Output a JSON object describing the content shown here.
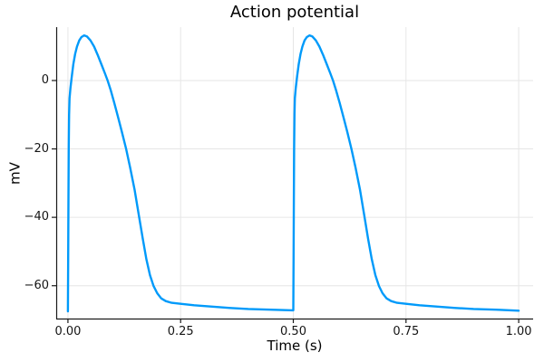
{
  "colors": {
    "line": "#009AFA",
    "grid": "#e6e6e6",
    "spine": "#1a1a1a",
    "tick_text": "#151515",
    "title_text": "#000000",
    "background": "#ffffff"
  },
  "chart_data": {
    "type": "line",
    "title": "Action potential",
    "xlabel": "Time (s)",
    "ylabel": "mV",
    "xlim": [
      -0.026,
      1.032
    ],
    "ylim": [
      -69.6,
      15.6
    ],
    "grid": true,
    "legend": "none",
    "xticks": {
      "values": [
        0,
        0.25,
        0.5,
        0.75,
        1.0
      ],
      "labels": [
        "0.00",
        "0.25",
        "0.50",
        "0.75",
        "1.00"
      ]
    },
    "yticks": {
      "values": [
        0,
        -20,
        -40,
        -60
      ],
      "labels": [
        "0",
        "−20",
        "−40",
        "−60"
      ]
    },
    "series": [
      {
        "name": "membrane potential",
        "color": "#009AFA",
        "points": [
          [
            0.0,
            -67.5
          ],
          [
            0.0006,
            -52
          ],
          [
            0.0012,
            -35
          ],
          [
            0.0018,
            -20
          ],
          [
            0.0025,
            -10
          ],
          [
            0.0035,
            -5.2
          ],
          [
            0.0055,
            -2.2
          ],
          [
            0.0085,
            1.2
          ],
          [
            0.012,
            4.8
          ],
          [
            0.016,
            7.8
          ],
          [
            0.02,
            9.9
          ],
          [
            0.025,
            11.7
          ],
          [
            0.03,
            12.7
          ],
          [
            0.036,
            13.2
          ],
          [
            0.042,
            12.9
          ],
          [
            0.05,
            11.7
          ],
          [
            0.058,
            9.9
          ],
          [
            0.066,
            7.5
          ],
          [
            0.075,
            4.5
          ],
          [
            0.082,
            2.1
          ],
          [
            0.088,
            0.0
          ],
          [
            0.095,
            -2.9
          ],
          [
            0.103,
            -6.6
          ],
          [
            0.112,
            -11.1
          ],
          [
            0.12,
            -15.2
          ],
          [
            0.129,
            -20.0
          ],
          [
            0.138,
            -25.4
          ],
          [
            0.148,
            -32.0
          ],
          [
            0.158,
            -40.0
          ],
          [
            0.166,
            -46.3
          ],
          [
            0.174,
            -52.2
          ],
          [
            0.182,
            -56.9
          ],
          [
            0.19,
            -60.1
          ],
          [
            0.198,
            -62.2
          ],
          [
            0.207,
            -63.7
          ],
          [
            0.217,
            -64.5
          ],
          [
            0.23,
            -65.0
          ],
          [
            0.25,
            -65.3
          ],
          [
            0.28,
            -65.7
          ],
          [
            0.32,
            -66.1
          ],
          [
            0.36,
            -66.5
          ],
          [
            0.4,
            -66.8
          ],
          [
            0.45,
            -67.0
          ],
          [
            0.4995,
            -67.2
          ],
          [
            0.5,
            -67.2
          ],
          [
            0.5006,
            -52
          ],
          [
            0.5012,
            -35
          ],
          [
            0.5018,
            -20
          ],
          [
            0.5025,
            -10
          ],
          [
            0.5035,
            -5.2
          ],
          [
            0.5055,
            -2.2
          ],
          [
            0.5085,
            1.2
          ],
          [
            0.512,
            4.8
          ],
          [
            0.516,
            7.8
          ],
          [
            0.52,
            9.9
          ],
          [
            0.525,
            11.7
          ],
          [
            0.53,
            12.7
          ],
          [
            0.536,
            13.2
          ],
          [
            0.542,
            12.9
          ],
          [
            0.55,
            11.7
          ],
          [
            0.558,
            9.9
          ],
          [
            0.566,
            7.5
          ],
          [
            0.575,
            4.5
          ],
          [
            0.582,
            2.1
          ],
          [
            0.588,
            0.0
          ],
          [
            0.595,
            -2.9
          ],
          [
            0.603,
            -6.6
          ],
          [
            0.612,
            -11.1
          ],
          [
            0.62,
            -15.2
          ],
          [
            0.629,
            -20.0
          ],
          [
            0.638,
            -25.4
          ],
          [
            0.648,
            -32.0
          ],
          [
            0.658,
            -40.0
          ],
          [
            0.666,
            -46.3
          ],
          [
            0.674,
            -52.2
          ],
          [
            0.682,
            -56.9
          ],
          [
            0.69,
            -60.1
          ],
          [
            0.698,
            -62.2
          ],
          [
            0.707,
            -63.7
          ],
          [
            0.717,
            -64.5
          ],
          [
            0.73,
            -65.0
          ],
          [
            0.75,
            -65.3
          ],
          [
            0.78,
            -65.7
          ],
          [
            0.82,
            -66.1
          ],
          [
            0.86,
            -66.5
          ],
          [
            0.9,
            -66.8
          ],
          [
            0.95,
            -67.0
          ],
          [
            1.0,
            -67.3
          ]
        ]
      }
    ]
  }
}
